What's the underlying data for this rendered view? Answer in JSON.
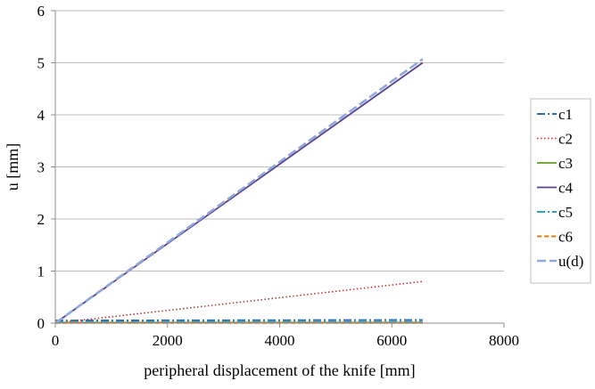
{
  "chart_data": {
    "type": "line",
    "xlabel": "peripheral displacement of the knife [mm]",
    "ylabel": "u [mm]",
    "xlim": [
      0,
      8000
    ],
    "ylim": [
      0,
      6
    ],
    "xticks": [
      0,
      2000,
      4000,
      6000,
      8000
    ],
    "yticks": [
      0,
      1,
      2,
      3,
      4,
      5,
      6
    ],
    "grid": "horizontal",
    "legend_position": "right",
    "series": [
      {
        "name": "c1",
        "color": "#2e6fb0",
        "dash": "dashdot",
        "x": [
          0,
          6550
        ],
        "y": [
          0.05,
          0.06
        ]
      },
      {
        "name": "c2",
        "color": "#b33a3a",
        "dash": "dotted",
        "x": [
          0,
          6550
        ],
        "y": [
          0.0,
          0.8
        ]
      },
      {
        "name": "c3",
        "color": "#7aa83c",
        "dash": "solid",
        "x": [
          0,
          6550
        ],
        "y": [
          0.01,
          0.01
        ]
      },
      {
        "name": "c4",
        "color": "#5b3f8a",
        "dash": "solid",
        "x": [
          0,
          6550
        ],
        "y": [
          0.0,
          5.0
        ]
      },
      {
        "name": "c5",
        "color": "#2fa3c0",
        "dash": "dashdot",
        "x": [
          0,
          6550
        ],
        "y": [
          0.02,
          0.02
        ]
      },
      {
        "name": "c6",
        "color": "#e07b22",
        "dash": "dashed",
        "x": [
          0,
          6550
        ],
        "y": [
          0.005,
          0.005
        ]
      },
      {
        "name": "u(d)",
        "color": "#8fa8dc",
        "dash": "longdash",
        "x": [
          0,
          6550
        ],
        "y": [
          0.0,
          5.07
        ]
      }
    ]
  }
}
